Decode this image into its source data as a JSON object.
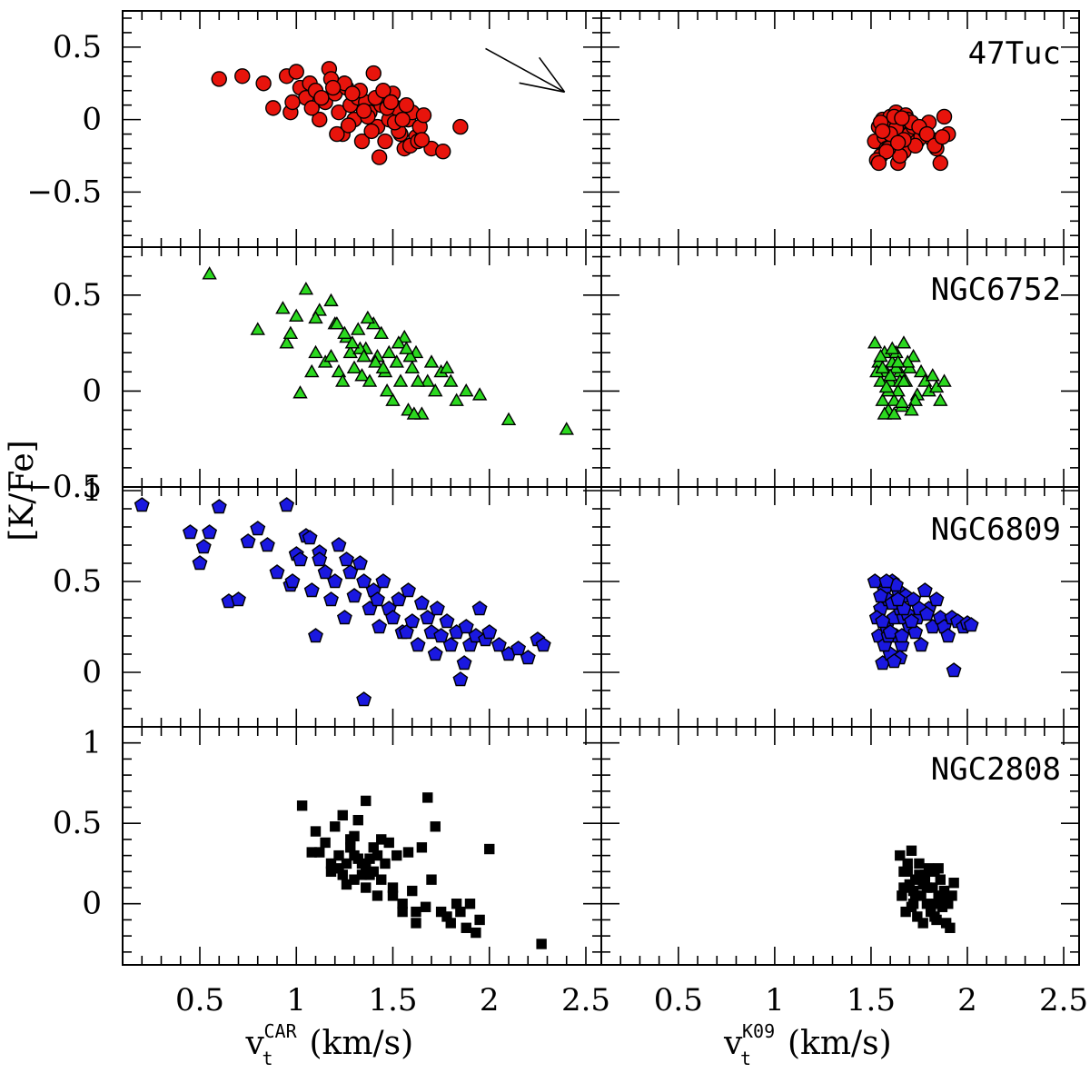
{
  "chart_data": {
    "type": "scatter",
    "ylabel": "[K/Fe]",
    "columns": [
      {
        "name": "CAR",
        "xlabel_main": "v",
        "xlabel_sub": "t",
        "xlabel_sup": "CAR",
        "xlabel_unit": " (km/s)"
      },
      {
        "name": "K09",
        "xlabel_main": "v",
        "xlabel_sub": "t",
        "xlabel_sup": "K09",
        "xlabel_unit": " (km/s)"
      }
    ],
    "x_range": [
      0.1,
      2.58
    ],
    "x_ticks": [
      0.5,
      1,
      1.5,
      2,
      2.5
    ],
    "x_tick_labels": [
      "0.5",
      "1",
      "1.5",
      "2",
      "2.5"
    ],
    "rows": [
      {
        "cluster": "47Tuc",
        "marker": "circle",
        "color": "#e8140c",
        "y_range": [
          -0.88,
          0.75
        ],
        "y_ticks": [
          0.5,
          0,
          -0.5
        ],
        "y_tick_labels": [
          "0.5",
          "0",
          "−0.5"
        ]
      },
      {
        "cluster": "NGC6752",
        "marker": "triangle",
        "color": "#2bd81f",
        "y_range": [
          -0.5,
          0.75
        ],
        "y_ticks": [
          0.5,
          0,
          -0.5
        ],
        "y_tick_labels": [
          "0.5",
          "0",
          "−0.5"
        ]
      },
      {
        "cluster": "NGC6809",
        "marker": "pentagon",
        "color": "#1a18e0",
        "y_range": [
          -0.3,
          1.02
        ],
        "y_ticks": [
          1,
          0.5,
          0
        ],
        "y_tick_labels": [
          "1",
          "0.5",
          "0"
        ]
      },
      {
        "cluster": "NGC2808",
        "marker": "square",
        "color": "#000000",
        "y_range": [
          -0.38,
          1.1
        ],
        "y_ticks": [
          1,
          0.5,
          0
        ],
        "y_tick_labels": [
          "1",
          "0.5",
          "0"
        ]
      }
    ],
    "vector_arrow": {
      "from": [
        0.96,
        0.85
      ],
      "to": [
        1.18,
        0.7
      ],
      "note": "drawn in 47Tuc CAR panel, data units x=2.0->2.4, y=0.48->0.19"
    },
    "series": [
      {
        "cluster": "47Tuc",
        "column": "CAR",
        "x": [
          0.6,
          0.72,
          0.83,
          0.88,
          0.95,
          0.97,
          1.0,
          1.02,
          1.05,
          1.07,
          1.1,
          1.12,
          1.15,
          1.17,
          1.2,
          1.22,
          1.24,
          1.26,
          1.28,
          1.3,
          1.32,
          1.34,
          1.36,
          1.38,
          1.4,
          1.42,
          1.44,
          1.46,
          1.48,
          1.5,
          1.52,
          1.54,
          1.56,
          1.58,
          1.6,
          1.62,
          1.64,
          1.66,
          1.7,
          1.76,
          1.85,
          0.98,
          1.08,
          1.18,
          1.25,
          1.33,
          1.41,
          1.47,
          1.53,
          1.59,
          1.21,
          1.29,
          1.37,
          1.45,
          1.51,
          1.57,
          1.63,
          1.39,
          1.43,
          1.35,
          1.27,
          1.19,
          1.13,
          1.65,
          1.55,
          1.49
        ],
        "y": [
          0.28,
          0.3,
          0.25,
          0.08,
          0.3,
          0.05,
          0.33,
          0.22,
          0.15,
          0.25,
          0.2,
          0.0,
          0.12,
          0.35,
          0.18,
          0.05,
          -0.1,
          0.22,
          0.1,
          0.0,
          0.15,
          -0.15,
          0.12,
          0.05,
          0.32,
          -0.05,
          0.1,
          -0.15,
          0.0,
          0.18,
          0.08,
          -0.1,
          -0.2,
          0.0,
          0.05,
          -0.12,
          -0.05,
          0.03,
          -0.2,
          -0.22,
          -0.05,
          0.12,
          0.08,
          0.28,
          0.25,
          0.2,
          0.15,
          0.08,
          -0.08,
          -0.18,
          -0.1,
          0.18,
          0.02,
          0.2,
          -0.02,
          0.1,
          -0.15,
          -0.08,
          -0.26,
          0.06,
          -0.04,
          0.22,
          0.15,
          -0.14,
          0.0,
          0.12
        ]
      },
      {
        "cluster": "47Tuc",
        "column": "K09",
        "x": [
          1.52,
          1.54,
          1.55,
          1.56,
          1.57,
          1.58,
          1.59,
          1.6,
          1.61,
          1.62,
          1.63,
          1.64,
          1.65,
          1.66,
          1.67,
          1.68,
          1.7,
          1.72,
          1.74,
          1.76,
          1.78,
          1.8,
          1.82,
          1.84,
          1.86,
          1.88,
          1.9,
          1.53,
          1.57,
          1.61,
          1.65,
          1.69,
          1.73,
          1.55,
          1.59,
          1.63,
          1.67,
          1.71,
          1.6,
          1.62,
          1.64,
          1.58,
          1.56,
          1.66,
          1.75,
          1.79,
          1.83,
          1.87,
          1.54
        ],
        "y": [
          -0.15,
          -0.05,
          -0.25,
          0.0,
          -0.12,
          -0.2,
          -0.08,
          0.02,
          -0.18,
          -0.1,
          0.05,
          -0.3,
          -0.02,
          -0.15,
          -0.22,
          0.03,
          -0.1,
          -0.05,
          -0.15,
          -0.12,
          -0.08,
          -0.02,
          -0.14,
          -0.2,
          -0.3,
          0.02,
          -0.1,
          -0.28,
          -0.05,
          -0.12,
          -0.25,
          0.0,
          -0.18,
          -0.02,
          -0.2,
          -0.06,
          -0.14,
          -0.02,
          -0.1,
          0.02,
          -0.16,
          -0.22,
          -0.08,
          0.01,
          -0.05,
          -0.1,
          -0.18,
          -0.12,
          -0.3
        ]
      },
      {
        "cluster": "NGC6752",
        "column": "CAR",
        "x": [
          0.55,
          0.8,
          0.93,
          0.95,
          0.97,
          1.0,
          1.02,
          1.05,
          1.08,
          1.1,
          1.12,
          1.15,
          1.18,
          1.2,
          1.22,
          1.24,
          1.26,
          1.28,
          1.3,
          1.32,
          1.34,
          1.36,
          1.38,
          1.4,
          1.42,
          1.44,
          1.46,
          1.48,
          1.5,
          1.52,
          1.54,
          1.56,
          1.58,
          1.6,
          1.62,
          1.65,
          1.68,
          1.7,
          1.72,
          1.75,
          1.78,
          1.8,
          1.83,
          1.88,
          1.95,
          2.1,
          2.4,
          1.1,
          1.18,
          1.25,
          1.33,
          1.41,
          1.47,
          1.53,
          1.59,
          1.63,
          1.37,
          1.45,
          1.57,
          1.61,
          1.29,
          1.21,
          1.35
        ],
        "y": [
          0.61,
          0.32,
          0.43,
          0.25,
          0.3,
          0.39,
          -0.01,
          0.53,
          0.1,
          0.2,
          0.42,
          0.15,
          0.47,
          0.35,
          0.1,
          0.05,
          0.28,
          0.2,
          0.12,
          0.32,
          0.08,
          0.22,
          0.05,
          0.35,
          0.18,
          0.3,
          0.1,
          0.2,
          -0.05,
          0.15,
          0.05,
          0.28,
          -0.1,
          0.12,
          0.2,
          -0.12,
          0.05,
          0.15,
          0.0,
          0.1,
          0.12,
          0.05,
          -0.05,
          0.0,
          -0.02,
          -0.15,
          -0.2,
          0.38,
          0.18,
          0.3,
          0.22,
          0.15,
          0.0,
          0.25,
          0.18,
          0.05,
          0.38,
          0.12,
          0.22,
          -0.12,
          0.25,
          0.35,
          0.18
        ]
      },
      {
        "cluster": "NGC6752",
        "column": "K09",
        "x": [
          1.52,
          1.54,
          1.55,
          1.56,
          1.57,
          1.58,
          1.59,
          1.6,
          1.61,
          1.62,
          1.63,
          1.64,
          1.65,
          1.66,
          1.67,
          1.68,
          1.7,
          1.72,
          1.74,
          1.76,
          1.78,
          1.8,
          1.82,
          1.84,
          1.86,
          1.88,
          1.53,
          1.57,
          1.61,
          1.65,
          1.69,
          1.73,
          1.55,
          1.59,
          1.63,
          1.67,
          1.71,
          1.6,
          1.62,
          1.64,
          1.58,
          1.56,
          1.66
        ],
        "y": [
          0.25,
          0.15,
          0.05,
          -0.05,
          0.2,
          0.1,
          -0.1,
          0.05,
          0.15,
          -0.05,
          0.2,
          0.0,
          0.1,
          -0.08,
          0.25,
          0.05,
          0.12,
          0.18,
          -0.02,
          0.1,
          0.05,
          0.0,
          0.08,
          0.02,
          -0.05,
          0.05,
          0.1,
          -0.12,
          0.22,
          0.05,
          0.15,
          -0.05,
          0.18,
          0.0,
          0.12,
          0.05,
          -0.1,
          0.08,
          -0.12,
          0.15,
          0.02,
          0.12,
          -0.06
        ]
      },
      {
        "cluster": "NGC6809",
        "column": "CAR",
        "x": [
          0.2,
          0.45,
          0.5,
          0.52,
          0.55,
          0.6,
          0.65,
          0.7,
          0.75,
          0.8,
          0.85,
          0.9,
          0.95,
          0.97,
          1.0,
          1.02,
          1.05,
          1.08,
          1.1,
          1.12,
          1.15,
          1.18,
          1.2,
          1.22,
          1.25,
          1.28,
          1.3,
          1.33,
          1.35,
          1.38,
          1.4,
          1.43,
          1.45,
          1.48,
          1.5,
          1.53,
          1.55,
          1.58,
          1.6,
          1.63,
          1.65,
          1.68,
          1.7,
          1.73,
          1.75,
          1.78,
          1.8,
          1.83,
          1.85,
          1.88,
          1.9,
          1.93,
          1.95,
          1.98,
          2.0,
          2.05,
          2.1,
          2.15,
          2.2,
          2.25,
          2.28,
          1.35,
          1.12,
          0.98,
          1.07,
          1.26,
          1.42,
          1.57,
          1.72,
          1.87
        ],
        "y": [
          0.92,
          0.77,
          0.6,
          0.69,
          0.77,
          0.91,
          0.39,
          0.4,
          0.72,
          0.79,
          0.7,
          0.55,
          0.92,
          0.48,
          0.65,
          0.62,
          0.75,
          0.45,
          0.2,
          0.66,
          0.55,
          0.4,
          0.5,
          0.7,
          0.3,
          0.55,
          0.42,
          0.6,
          0.5,
          0.35,
          0.45,
          0.25,
          0.5,
          0.35,
          0.3,
          0.4,
          0.22,
          0.45,
          0.28,
          0.15,
          0.38,
          0.3,
          0.22,
          0.35,
          0.2,
          0.28,
          0.15,
          0.22,
          -0.04,
          0.25,
          0.15,
          0.2,
          0.35,
          0.18,
          0.22,
          0.15,
          0.1,
          0.13,
          0.08,
          0.18,
          0.15,
          -0.15,
          0.62,
          0.5,
          0.74,
          0.62,
          0.4,
          0.22,
          0.1,
          0.05
        ]
      },
      {
        "cluster": "NGC6809",
        "column": "K09",
        "x": [
          1.52,
          1.54,
          1.55,
          1.56,
          1.57,
          1.58,
          1.59,
          1.6,
          1.61,
          1.62,
          1.63,
          1.64,
          1.65,
          1.66,
          1.67,
          1.68,
          1.7,
          1.72,
          1.74,
          1.76,
          1.78,
          1.8,
          1.82,
          1.84,
          1.86,
          1.88,
          1.9,
          1.92,
          1.95,
          1.98,
          2.0,
          2.02,
          1.93,
          1.53,
          1.57,
          1.61,
          1.65,
          1.69,
          1.73,
          1.55,
          1.59,
          1.63,
          1.67,
          1.71,
          1.6,
          1.62,
          1.64,
          1.58,
          1.56,
          1.66,
          1.75,
          1.79
        ],
        "y": [
          0.5,
          0.2,
          0.35,
          0.05,
          0.45,
          0.25,
          0.4,
          0.1,
          0.5,
          0.3,
          0.2,
          0.45,
          0.35,
          0.15,
          0.3,
          0.42,
          0.25,
          0.4,
          0.3,
          0.15,
          0.45,
          0.35,
          0.25,
          0.4,
          0.3,
          0.25,
          0.2,
          0.3,
          0.28,
          0.25,
          0.27,
          0.26,
          0.01,
          0.3,
          0.15,
          0.38,
          0.08,
          0.32,
          0.22,
          0.42,
          0.2,
          0.48,
          0.35,
          0.28,
          0.22,
          0.06,
          0.4,
          0.5,
          0.28,
          0.2,
          0.35,
          0.32
        ]
      },
      {
        "cluster": "NGC2808",
        "column": "CAR",
        "x": [
          1.03,
          1.08,
          1.1,
          1.12,
          1.15,
          1.18,
          1.2,
          1.22,
          1.24,
          1.26,
          1.28,
          1.3,
          1.32,
          1.34,
          1.36,
          1.38,
          1.4,
          1.42,
          1.44,
          1.46,
          1.48,
          1.5,
          1.52,
          1.55,
          1.58,
          1.6,
          1.62,
          1.65,
          1.68,
          1.7,
          1.72,
          1.75,
          1.78,
          1.8,
          1.83,
          1.85,
          1.88,
          1.9,
          1.93,
          1.95,
          2.0,
          2.27,
          1.22,
          1.28,
          1.32,
          1.36,
          1.4,
          1.44,
          1.3,
          1.26,
          1.34,
          1.38,
          1.42,
          1.18,
          1.24,
          1.3,
          1.36,
          1.5,
          1.55,
          1.62,
          1.67
        ],
        "y": [
          0.61,
          0.32,
          0.45,
          0.32,
          0.38,
          0.2,
          0.48,
          0.3,
          0.55,
          0.25,
          0.4,
          0.15,
          0.52,
          0.25,
          0.64,
          0.18,
          0.35,
          0.05,
          0.4,
          0.25,
          0.38,
          0.1,
          0.3,
          -0.05,
          0.32,
          0.08,
          -0.12,
          0.35,
          0.66,
          0.15,
          0.48,
          -0.05,
          -0.08,
          -0.12,
          0.0,
          -0.05,
          -0.15,
          0.0,
          -0.18,
          -0.1,
          0.34,
          -0.25,
          0.22,
          0.35,
          0.28,
          0.1,
          0.2,
          0.15,
          0.42,
          0.12,
          0.18,
          0.28,
          0.3,
          0.25,
          0.18,
          0.3,
          0.22,
          0.05,
          0.0,
          -0.05,
          -0.02
        ]
      },
      {
        "cluster": "NGC2808",
        "column": "K09",
        "x": [
          1.65,
          1.66,
          1.67,
          1.68,
          1.69,
          1.7,
          1.71,
          1.72,
          1.73,
          1.74,
          1.75,
          1.76,
          1.77,
          1.78,
          1.79,
          1.8,
          1.81,
          1.82,
          1.83,
          1.84,
          1.85,
          1.86,
          1.87,
          1.88,
          1.89,
          1.9,
          1.91,
          1.92,
          1.93,
          1.67,
          1.71,
          1.75,
          1.79,
          1.83,
          1.87,
          1.69,
          1.73,
          1.77,
          1.81,
          1.85,
          1.72,
          1.78,
          1.84
        ],
        "y": [
          0.3,
          0.05,
          0.2,
          -0.05,
          0.25,
          0.12,
          0.33,
          0.0,
          0.15,
          -0.08,
          0.25,
          0.05,
          -0.12,
          0.18,
          0.0,
          0.22,
          -0.05,
          0.1,
          0.2,
          -0.1,
          0.05,
          0.15,
          -0.02,
          0.08,
          -0.12,
          0.0,
          -0.15,
          0.05,
          0.13,
          0.1,
          -0.02,
          0.18,
          0.1,
          -0.08,
          0.02,
          0.2,
          0.05,
          0.12,
          -0.02,
          0.22,
          0.08,
          0.15,
          0.0
        ]
      }
    ]
  }
}
